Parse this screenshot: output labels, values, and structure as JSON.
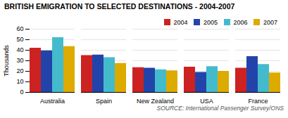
{
  "chart_data": {
    "type": "bar",
    "title": "BRITISH EMIGRATION TO SELECTED DESTINATIONS - 2004-2007",
    "ylabel": "Thousands",
    "source": "SOURCE: International Passenger Survey/ONS",
    "categories": [
      "Australia",
      "Spain",
      "New Zealand",
      "USA",
      "France"
    ],
    "series": [
      {
        "name": "2004",
        "color": "#cc2222",
        "values": [
          42,
          35,
          23.5,
          24,
          23
        ]
      },
      {
        "name": "2005",
        "color": "#2244aa",
        "values": [
          39.5,
          35.5,
          23,
          19,
          34
        ]
      },
      {
        "name": "2006",
        "color": "#44bbcc",
        "values": [
          52,
          33,
          21.5,
          24.5,
          26.5
        ]
      },
      {
        "name": "2007",
        "color": "#ddaa00",
        "values": [
          43.5,
          27.5,
          20.5,
          20,
          18.5
        ]
      }
    ],
    "ylim": [
      0,
      60
    ],
    "yticks": [
      0,
      10,
      20,
      30,
      40,
      50,
      60
    ],
    "grid": true,
    "legend": "upper right"
  }
}
